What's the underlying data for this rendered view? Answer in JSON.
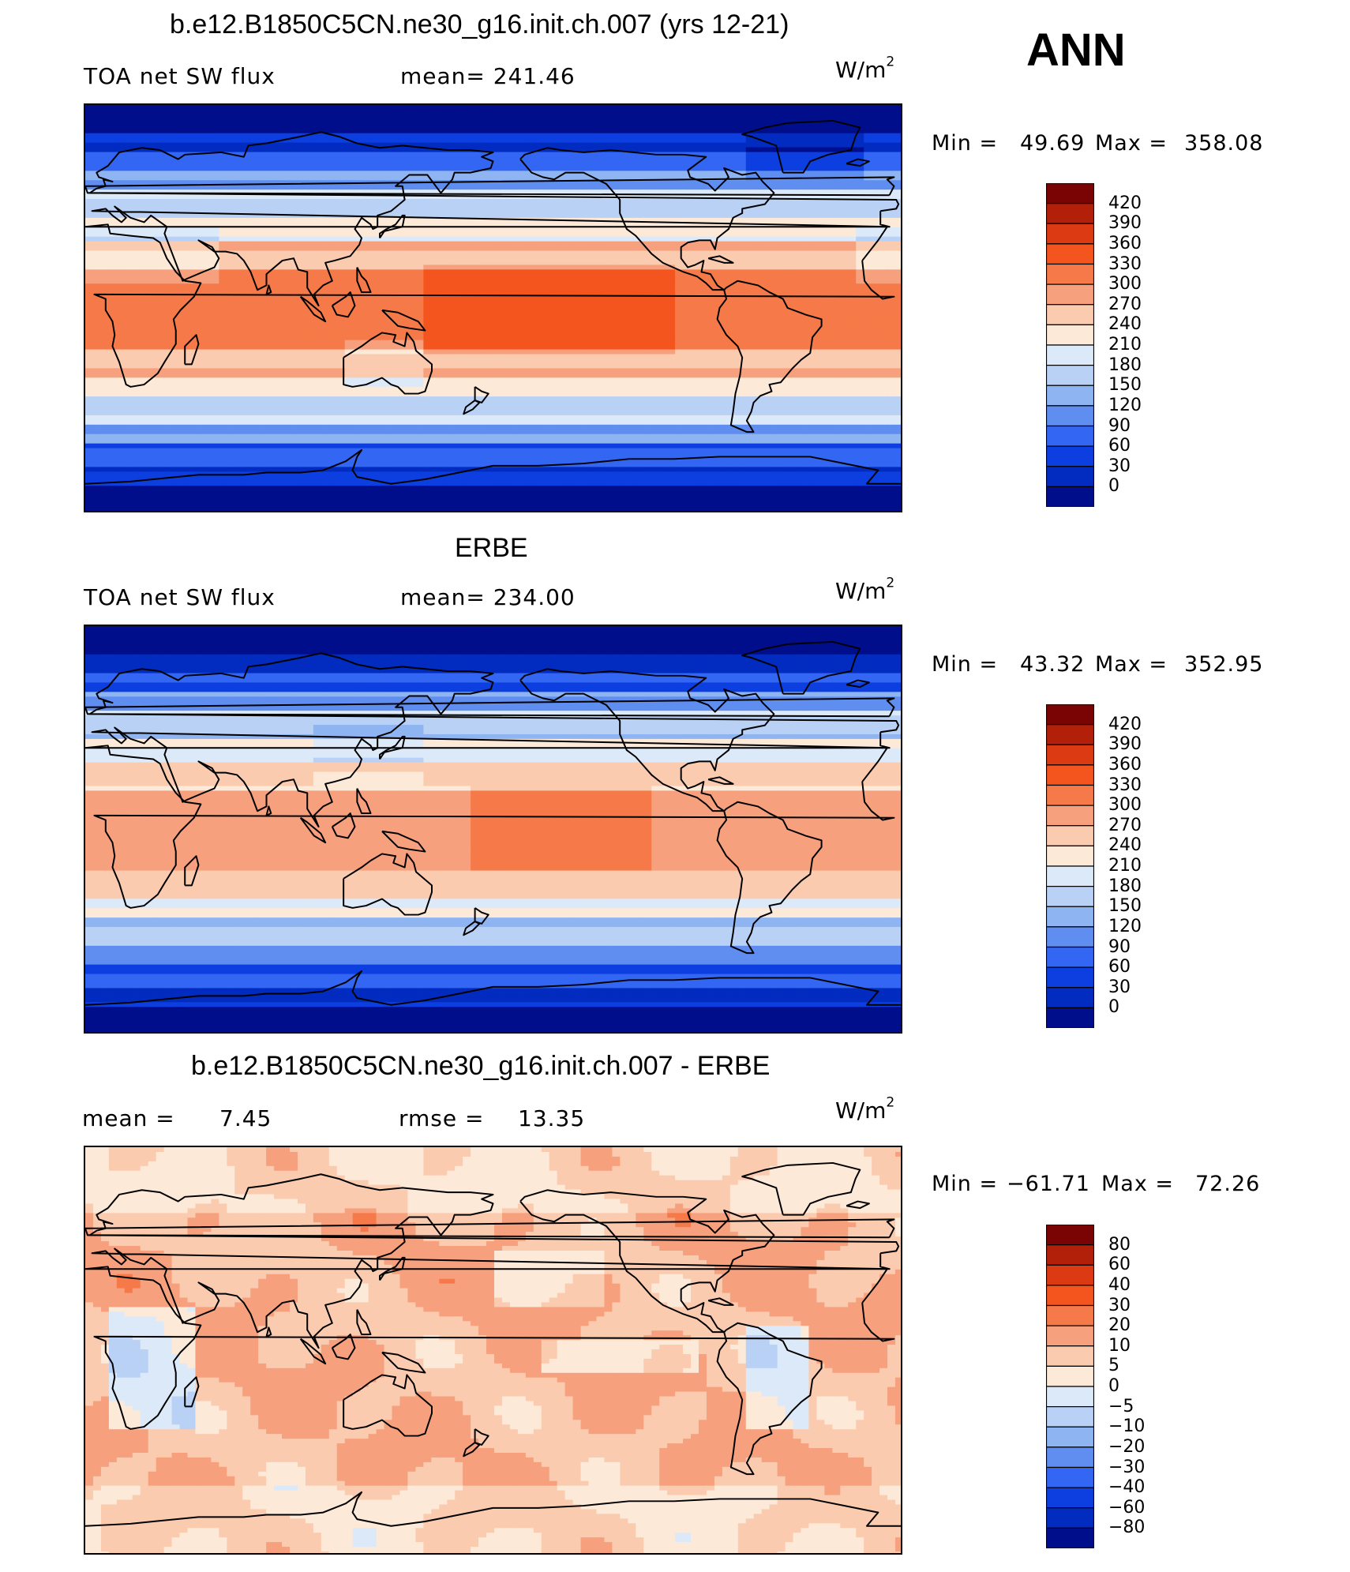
{
  "season": "ANN",
  "units_base": "W/m",
  "units_exp": "2",
  "coast_color": "#000000",
  "panels": [
    {
      "title": "b.e12.B1850C5CN.ne30_g16.init.ch.007 (yrs 12-21)",
      "left_label": "TOA net SW flux",
      "stat1": "mean= 241.46",
      "stat2": "",
      "min_label": "Min =",
      "min_value": "49.69",
      "max_label": "Max =",
      "max_value": "358.08",
      "field": "model",
      "colorbar_labels": [
        "420",
        "390",
        "360",
        "330",
        "300",
        "270",
        "240",
        "210",
        "180",
        "150",
        "120",
        "90",
        "60",
        "30",
        "0"
      ]
    },
    {
      "title": "ERBE",
      "left_label": "TOA net SW flux",
      "stat1": "mean= 234.00",
      "stat2": "",
      "min_label": "Min =",
      "min_value": "43.32",
      "max_label": "Max =",
      "max_value": "352.95",
      "field": "obs",
      "colorbar_labels": [
        "420",
        "390",
        "360",
        "330",
        "300",
        "270",
        "240",
        "210",
        "180",
        "150",
        "120",
        "90",
        "60",
        "30",
        "0"
      ]
    },
    {
      "title": "b.e12.B1850C5CN.ne30_g16.init.ch.007 - ERBE",
      "left_label": "mean =",
      "left_value": "7.45",
      "stat1": "rmse =",
      "stat2": "13.35",
      "min_label": "Min =",
      "min_value": "−61.71",
      "max_label": "Max =",
      "max_value": "72.26",
      "field": "diff",
      "colorbar_labels": [
        "80",
        "60",
        "40",
        "30",
        "20",
        "10",
        "5",
        "0",
        "−5",
        "−10",
        "−20",
        "−30",
        "−40",
        "−60",
        "−80"
      ]
    }
  ],
  "palette": [
    "#7a0403",
    "#b3200a",
    "#dc3a12",
    "#f4551e",
    "#f67a49",
    "#f6a07e",
    "#fbcbb0",
    "#fde9d8",
    "#dce9f8",
    "#b8d1f5",
    "#8eb4f2",
    "#5f8ef0",
    "#3366f2",
    "#0d3fe0",
    "#022bc0",
    "#000e8c"
  ]
}
